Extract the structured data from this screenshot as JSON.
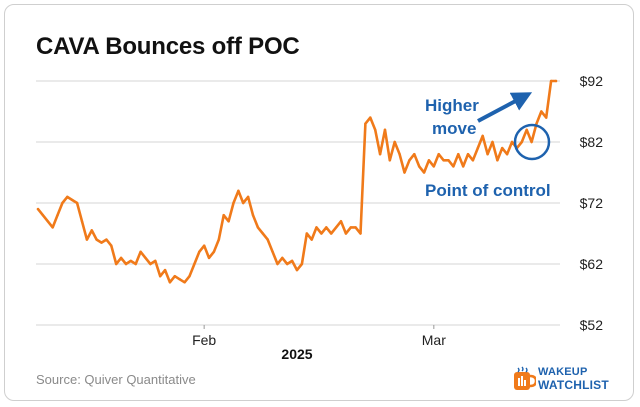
{
  "chart_data": {
    "type": "line",
    "title": "CAVA Bounces off POC",
    "xlabel": "2025",
    "ylabel": "",
    "ylim": [
      52,
      92
    ],
    "yticks": [
      52,
      62,
      72,
      82,
      92
    ],
    "ytick_labels": [
      "$52",
      "$62",
      "$72",
      "$82",
      "$92"
    ],
    "x_tick_labels": [
      "Feb",
      "Mar"
    ],
    "x_tick_index": [
      34,
      81
    ],
    "series": [
      {
        "name": "CAVA",
        "color": "#f07a1a",
        "values": [
          71,
          70,
          69,
          68,
          70,
          72,
          73,
          72.5,
          72,
          69,
          66,
          67.5,
          66,
          65.5,
          66,
          65,
          62,
          63,
          62,
          62.5,
          62,
          64,
          63,
          62,
          62.5,
          60,
          61,
          59,
          60,
          59.5,
          59,
          60,
          62,
          64,
          65,
          63,
          64,
          66,
          70,
          69,
          72,
          74,
          72,
          73,
          70,
          68,
          67,
          66,
          64,
          62,
          63,
          62,
          62.5,
          61,
          62,
          67,
          66,
          68,
          67,
          68,
          67,
          68,
          69,
          67,
          68,
          68,
          67,
          85,
          86,
          84,
          80,
          84,
          79,
          82,
          80,
          77,
          79,
          80,
          78,
          77,
          79,
          78,
          80,
          79,
          79,
          78,
          80,
          78,
          80,
          79,
          81,
          83,
          80,
          82,
          79,
          81,
          80,
          82,
          81,
          82,
          84,
          82,
          85,
          87,
          86,
          92,
          92
        ]
      }
    ],
    "annotations": {
      "higher_move": [
        "Higher",
        "move"
      ],
      "point_of_control": "Point of control",
      "annotation_color": "#1e62ae"
    }
  },
  "footer": {
    "source": "Source: Quiver Quantitative",
    "logo_line1": "WAKEUP",
    "logo_line2": "WATCHLIST"
  }
}
